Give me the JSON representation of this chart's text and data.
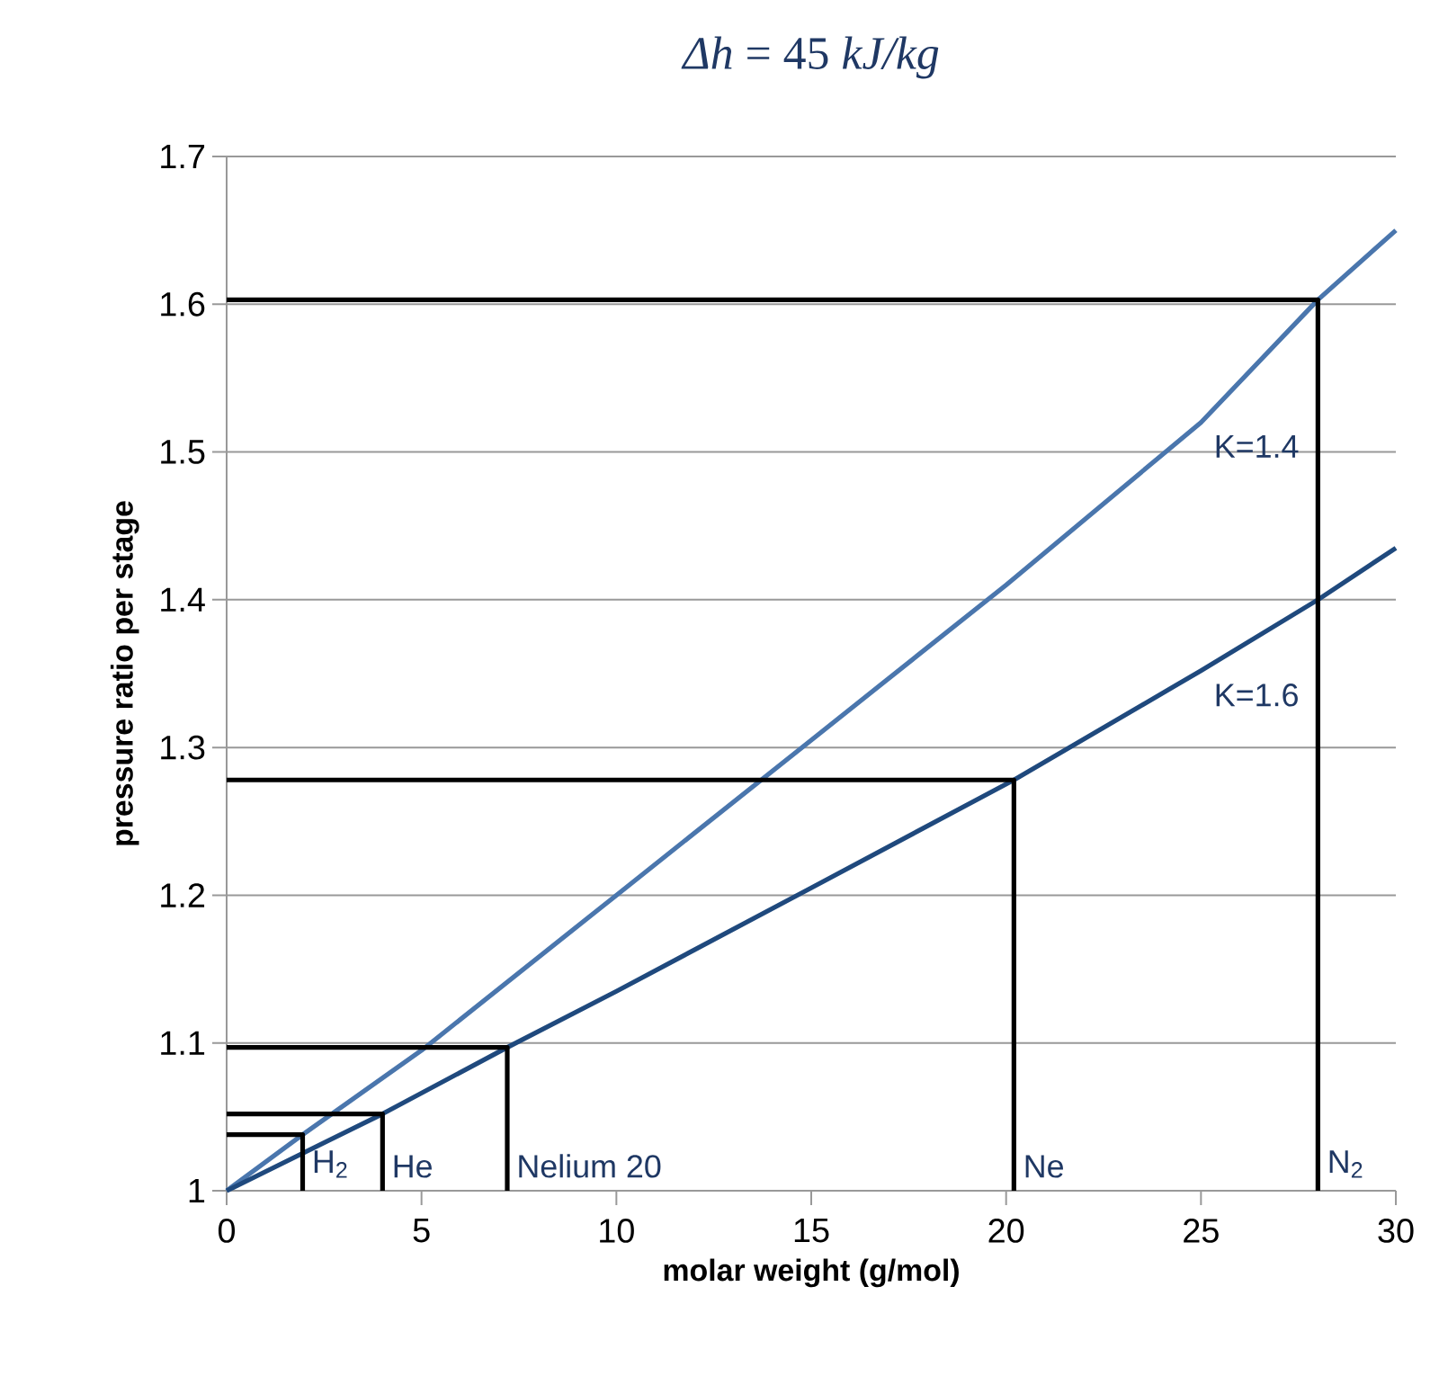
{
  "chart_data": {
    "type": "line",
    "title": "*Δh* = 45 *kJ/kg*",
    "xlabel": "molar weight (g/mol)",
    "ylabel": "pressure ratio per stage",
    "xlim": [
      0,
      30
    ],
    "ylim": [
      1,
      1.7
    ],
    "xticks": [
      0,
      5,
      10,
      15,
      20,
      25,
      30
    ],
    "yticks": [
      1,
      1.1,
      1.2,
      1.3,
      1.4,
      1.5,
      1.6,
      1.7
    ],
    "grid": "y",
    "line_style": "solid",
    "marker": "none",
    "series": [
      {
        "name": "K=1.4",
        "color": "#4a76ad",
        "x": [
          0,
          1.95,
          5,
          10,
          15,
          20,
          25,
          28,
          30
        ],
        "values": [
          1,
          1.038,
          1.095,
          1.2,
          1.305,
          1.41,
          1.52,
          1.603,
          1.65
        ]
      },
      {
        "name": "K=1.6",
        "color": "#1f497d",
        "x": [
          0,
          4,
          7.2,
          10,
          15,
          20.2,
          25,
          28,
          30
        ],
        "values": [
          1,
          1.052,
          1.097,
          1.135,
          1.205,
          1.278,
          1.352,
          1.4,
          1.435
        ]
      },
      {
        "name": "H$_{2}$",
        "color": "#000000",
        "x": [
          0,
          1.95,
          1.95
        ],
        "values": [
          1.038,
          1.038,
          1
        ]
      },
      {
        "name": "He",
        "color": "#000000",
        "x": [
          0,
          4,
          4
        ],
        "values": [
          1.052,
          1.052,
          1
        ]
      },
      {
        "name": "Nelium 20",
        "color": "#000000",
        "x": [
          0,
          7.2,
          7.2
        ],
        "values": [
          1.097,
          1.097,
          1
        ]
      },
      {
        "name": "Ne",
        "color": "#000000",
        "x": [
          0,
          20.2,
          20.2
        ],
        "values": [
          1.278,
          1.278,
          1
        ]
      },
      {
        "name": "N$_{2}$",
        "color": "#000000",
        "x": [
          0,
          28,
          28
        ],
        "values": [
          1.603,
          1.603,
          1
        ]
      }
    ]
  }
}
